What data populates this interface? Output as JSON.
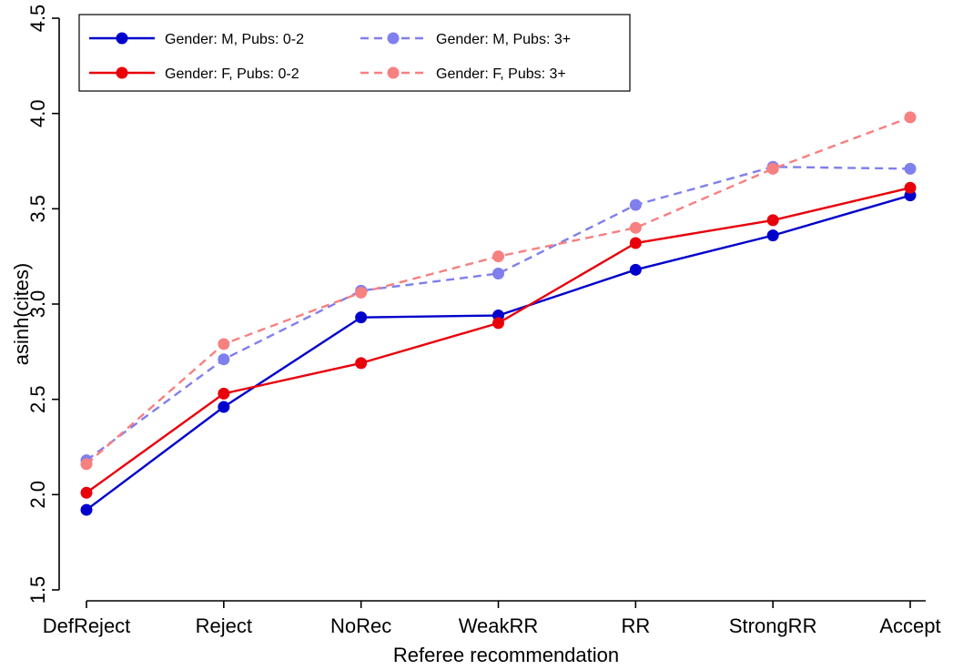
{
  "chart_data": {
    "type": "line",
    "title": "",
    "xlabel": "Referee recommendation",
    "ylabel": "asinh(cites)",
    "categories": [
      "DefReject",
      "Reject",
      "NoRec",
      "WeakRR",
      "RR",
      "StrongRR",
      "Accept"
    ],
    "ylim": [
      1.5,
      4.5
    ],
    "yticks": [
      1.5,
      2.0,
      2.5,
      3.0,
      3.5,
      4.0,
      4.5
    ],
    "ytick_labels": [
      "1.5",
      "2.0",
      "2.5",
      "3.0",
      "3.5",
      "4.0",
      "4.5"
    ],
    "grid": false,
    "legend_position": "top-left",
    "series": [
      {
        "name": "Gender: M, Pubs: 0-2",
        "color": "#0000cc",
        "dashed": false,
        "values": [
          1.92,
          2.46,
          2.93,
          2.94,
          3.18,
          3.36,
          3.57
        ]
      },
      {
        "name": "Gender: F, Pubs: 0-2",
        "color": "#e8000b",
        "dashed": false,
        "values": [
          2.01,
          2.53,
          2.69,
          2.9,
          3.32,
          3.44,
          3.61
        ]
      },
      {
        "name": "Gender: M, Pubs: 3+",
        "color": "#7f7fee",
        "dashed": true,
        "values": [
          2.18,
          2.71,
          3.07,
          3.16,
          3.52,
          3.72,
          3.71
        ]
      },
      {
        "name": "Gender: F, Pubs: 3+",
        "color": "#f78080",
        "dashed": true,
        "values": [
          2.16,
          2.79,
          3.06,
          3.25,
          3.4,
          3.71,
          3.98
        ]
      }
    ],
    "legend_order": [
      0,
      2,
      1,
      3
    ]
  }
}
